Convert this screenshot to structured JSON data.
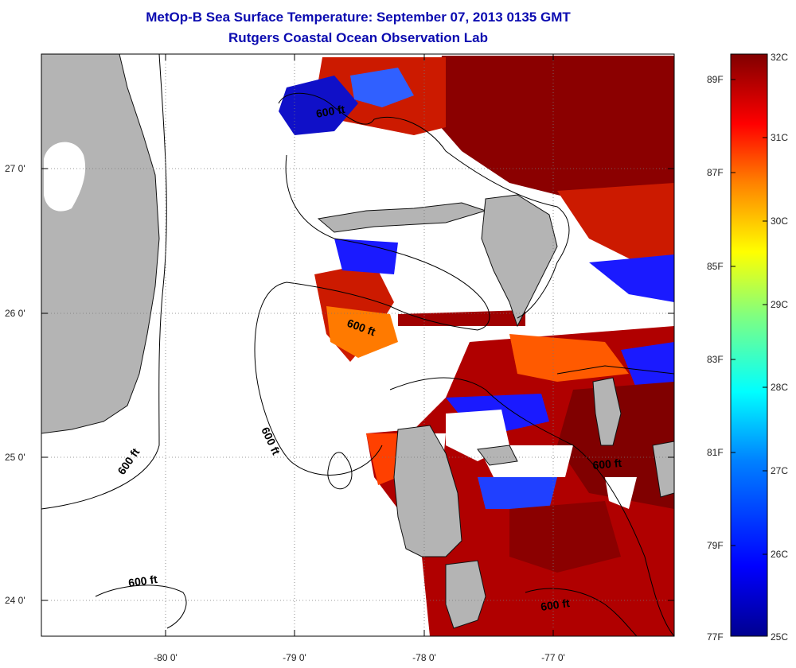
{
  "title": "MetOp-B Sea Surface Temperature:  September 07, 2013 0135 GMT",
  "subtitle": "Rutgers Coastal Ocean Observation Lab",
  "x_ticks": [
    "-80 0'",
    "-79 0'",
    "-78 0'",
    "-77 0'"
  ],
  "y_ticks": [
    "27 0'",
    "26 0'",
    "25 0'",
    "24 0'"
  ],
  "contour_labels": [
    "600 ft",
    "600 ft",
    "600 ft",
    "600 ft",
    "600 ft",
    "600 ft"
  ],
  "colorbar": {
    "celsius_labels": [
      "32C",
      "31C",
      "30C",
      "29C",
      "28C",
      "27C",
      "26C",
      "25C"
    ],
    "fahrenheit_labels": [
      "89F",
      "87F",
      "85F",
      "83F",
      "81F",
      "79F",
      "77F"
    ],
    "colors": [
      "#00008f",
      "#0000ff",
      "#0080ff",
      "#00ffff",
      "#80ff80",
      "#ffff00",
      "#ff8000",
      "#ff0000",
      "#800000"
    ]
  },
  "map_colors": {
    "land": "#b4b4b4",
    "no_data": "#ffffff",
    "ocean_warm": "#8b0000",
    "ocean_hot": "#cc1100"
  }
}
